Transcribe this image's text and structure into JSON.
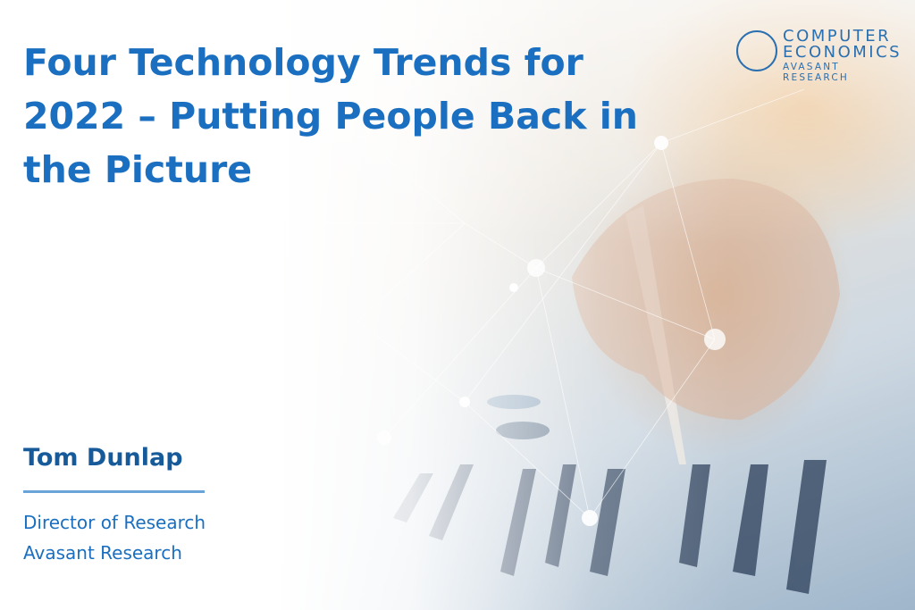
{
  "title": "Four Technology Trends for 2022 – Putting People Back in the Picture",
  "logo": {
    "line1": "COMPUTER",
    "line2": "ECONOMICS",
    "line3": "AVASANT RESEARCH"
  },
  "author": {
    "name": "Tom Dunlap",
    "role": "Director of Research",
    "organization": "Avasant Research"
  },
  "colors": {
    "title": "#1b6fc0",
    "name": "#175a9a",
    "rule": "#6aa3d8"
  }
}
